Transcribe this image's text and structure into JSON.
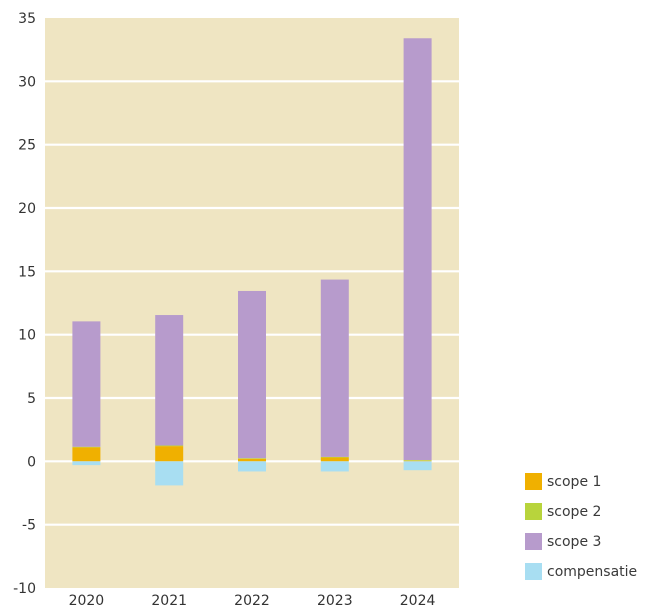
{
  "chart_data": {
    "type": "bar",
    "stacked": true,
    "categories": [
      "2020",
      "2021",
      "2022",
      "2023",
      "2024"
    ],
    "ylim": [
      -10,
      35
    ],
    "yticks": [
      -10,
      -5,
      0,
      5,
      10,
      15,
      20,
      25,
      30,
      35
    ],
    "grid": "horizontal",
    "legend_position": "bottom-right",
    "plot_background": "#efe5c2",
    "series": [
      {
        "name": "scope 1",
        "color": "#f0b000",
        "values": [
          1.1,
          1.2,
          0.2,
          0.3,
          0.05
        ]
      },
      {
        "name": "scope 2",
        "color": "#b8d43c",
        "values": [
          0.05,
          0.05,
          0.05,
          0.05,
          0.05
        ]
      },
      {
        "name": "scope 3",
        "color": "#b79bcc",
        "values": [
          9.9,
          10.3,
          13.2,
          14.0,
          33.3
        ]
      },
      {
        "name": "compensatie",
        "color": "#a8def2",
        "values": [
          -0.3,
          -1.9,
          -0.8,
          -0.8,
          -0.7
        ]
      }
    ]
  }
}
